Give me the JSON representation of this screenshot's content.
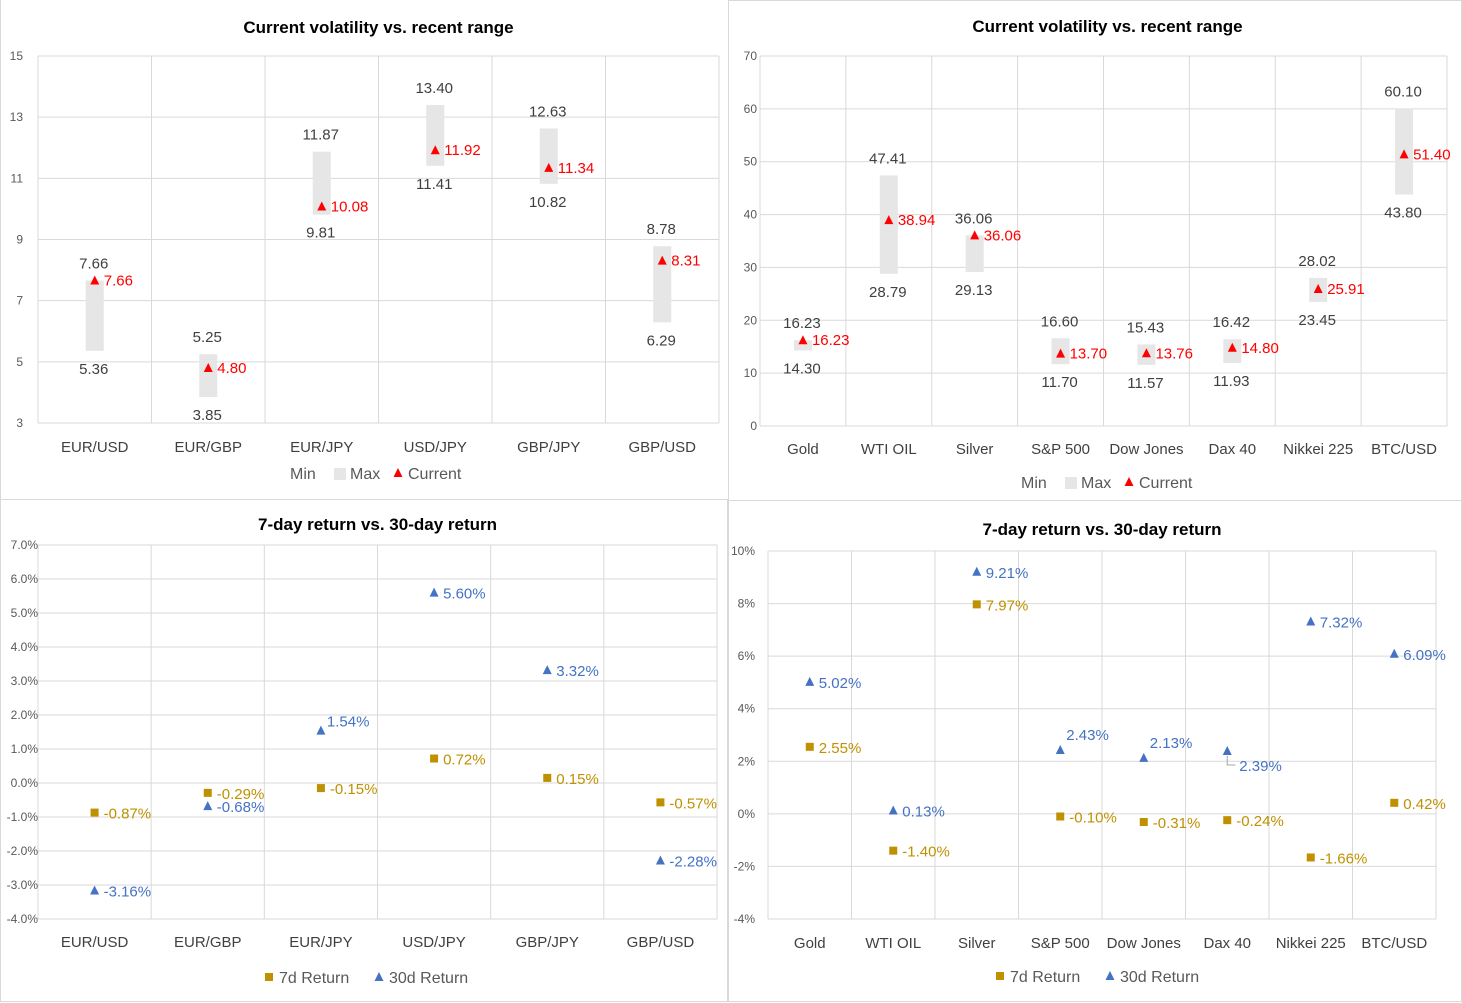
{
  "colors": {
    "grid": "#d9d9d9",
    "range_bar": "#e7e6e6",
    "current": "#ff0000",
    "min_max_label": "#404040",
    "return_7d": "#bf9000",
    "return_30d": "#4472c4"
  },
  "chart_data": [
    {
      "id": "fx-volatility",
      "type": "range-bar",
      "title": "Current volatility vs. recent range",
      "categories": [
        "EUR/USD",
        "EUR/GBP",
        "EUR/JPY",
        "USD/JPY",
        "GBP/JPY",
        "GBP/USD"
      ],
      "series": [
        {
          "name": "Min",
          "values": [
            5.36,
            3.85,
            9.81,
            11.41,
            10.82,
            6.29
          ]
        },
        {
          "name": "Max",
          "values": [
            7.66,
            5.25,
            11.87,
            13.4,
            12.63,
            8.78
          ]
        },
        {
          "name": "Current",
          "values": [
            7.66,
            4.8,
            10.08,
            11.92,
            11.34,
            8.31
          ]
        }
      ],
      "labels": {
        "min": [
          "5.36",
          "3.85",
          "9.81",
          "11.41",
          "10.82",
          "6.29"
        ],
        "max": [
          "7.66",
          "5.25",
          "11.87",
          "13.40",
          "12.63",
          "8.78"
        ],
        "current": [
          "7.66",
          "4.80",
          "10.08",
          "11.92",
          "11.34",
          "8.31"
        ]
      },
      "yticks": [
        "3",
        "5",
        "7",
        "9",
        "11",
        "13",
        "15"
      ],
      "ylim": [
        3,
        15
      ],
      "ystep": 2,
      "grid": true,
      "legend_position": "bottom",
      "legend": [
        "Min",
        "Max",
        "Current"
      ]
    },
    {
      "id": "asset-volatility",
      "type": "range-bar",
      "title": "Current volatility vs. recent range",
      "categories": [
        "Gold",
        "WTI OIL",
        "Silver",
        "S&P 500",
        "Dow Jones",
        "Dax 40",
        "Nikkei 225",
        "BTC/USD"
      ],
      "series": [
        {
          "name": "Min",
          "values": [
            14.3,
            28.79,
            29.13,
            11.7,
            11.57,
            11.93,
            23.45,
            43.8
          ]
        },
        {
          "name": "Max",
          "values": [
            16.23,
            47.41,
            36.06,
            16.6,
            15.43,
            16.42,
            28.02,
            60.1
          ]
        },
        {
          "name": "Current",
          "values": [
            16.23,
            38.94,
            36.06,
            13.7,
            13.76,
            14.8,
            25.91,
            51.4
          ]
        }
      ],
      "labels": {
        "min": [
          "14.30",
          "28.79",
          "29.13",
          "11.70",
          "11.57",
          "11.93",
          "23.45",
          "43.80"
        ],
        "max": [
          "16.23",
          "47.41",
          "36.06",
          "16.60",
          "15.43",
          "16.42",
          "28.02",
          "60.10"
        ],
        "current": [
          "16.23",
          "38.94",
          "36.06",
          "13.70",
          "13.76",
          "14.80",
          "25.91",
          "51.40"
        ]
      },
      "yticks": [
        "0",
        "10",
        "20",
        "30",
        "40",
        "50",
        "60",
        "70"
      ],
      "ylim": [
        0,
        70
      ],
      "ystep": 10,
      "grid": true,
      "legend_position": "bottom",
      "legend": [
        "Min",
        "Max",
        "Current"
      ]
    },
    {
      "id": "fx-returns",
      "type": "scatter",
      "title": "7-day return vs. 30-day return",
      "categories": [
        "EUR/USD",
        "EUR/GBP",
        "EUR/JPY",
        "USD/JPY",
        "GBP/JPY",
        "GBP/USD"
      ],
      "series": [
        {
          "name": "7d Return",
          "marker": "square",
          "values": [
            -0.87,
            -0.29,
            -0.15,
            0.72,
            0.15,
            -0.57
          ],
          "labels": [
            "-0.87%",
            "-0.29%",
            "-0.15%",
            "0.72%",
            "0.15%",
            "-0.57%"
          ]
        },
        {
          "name": "30d Return",
          "marker": "triangle",
          "values": [
            -3.16,
            -0.68,
            1.54,
            5.6,
            3.32,
            -2.28
          ],
          "labels": [
            "-3.16%",
            "-0.68%",
            "1.54%",
            "5.60%",
            "3.32%",
            "-2.28%"
          ]
        }
      ],
      "yticks": [
        "-4.0%",
        "-3.0%",
        "-2.0%",
        "-1.0%",
        "0.0%",
        "1.0%",
        "2.0%",
        "3.0%",
        "4.0%",
        "5.0%",
        "6.0%",
        "7.0%"
      ],
      "ylim": [
        -4,
        7
      ],
      "ystep": 1,
      "yunit": "%",
      "grid": true,
      "legend_position": "bottom",
      "legend": [
        "7d Return",
        "30d Return"
      ]
    },
    {
      "id": "asset-returns",
      "type": "scatter",
      "title": "7-day return vs. 30-day return",
      "categories": [
        "Gold",
        "WTI OIL",
        "Silver",
        "S&P 500",
        "Dow Jones",
        "Dax 40",
        "Nikkei 225",
        "BTC/USD"
      ],
      "series": [
        {
          "name": "7d Return",
          "marker": "square",
          "values": [
            2.55,
            -1.4,
            7.97,
            -0.1,
            -0.31,
            -0.24,
            -1.66,
            0.42
          ],
          "labels": [
            "2.55%",
            "-1.40%",
            "7.97%",
            "-0.10%",
            "-0.31%",
            "-0.24%",
            "-1.66%",
            "0.42%"
          ]
        },
        {
          "name": "30d Return",
          "marker": "triangle",
          "values": [
            5.02,
            0.13,
            9.21,
            2.43,
            2.13,
            2.39,
            7.32,
            6.09
          ],
          "labels": [
            "5.02%",
            "0.13%",
            "9.21%",
            "2.43%",
            "2.13%",
            "2.39%",
            "7.32%",
            "6.09%"
          ]
        }
      ],
      "yticks": [
        "-4%",
        "-2%",
        "0%",
        "2%",
        "4%",
        "6%",
        "8%",
        "10%"
      ],
      "ylim": [
        -4,
        10
      ],
      "ystep": 2,
      "yunit": "%",
      "grid": true,
      "legend_position": "bottom",
      "legend": [
        "7d Return",
        "30d Return"
      ]
    }
  ]
}
